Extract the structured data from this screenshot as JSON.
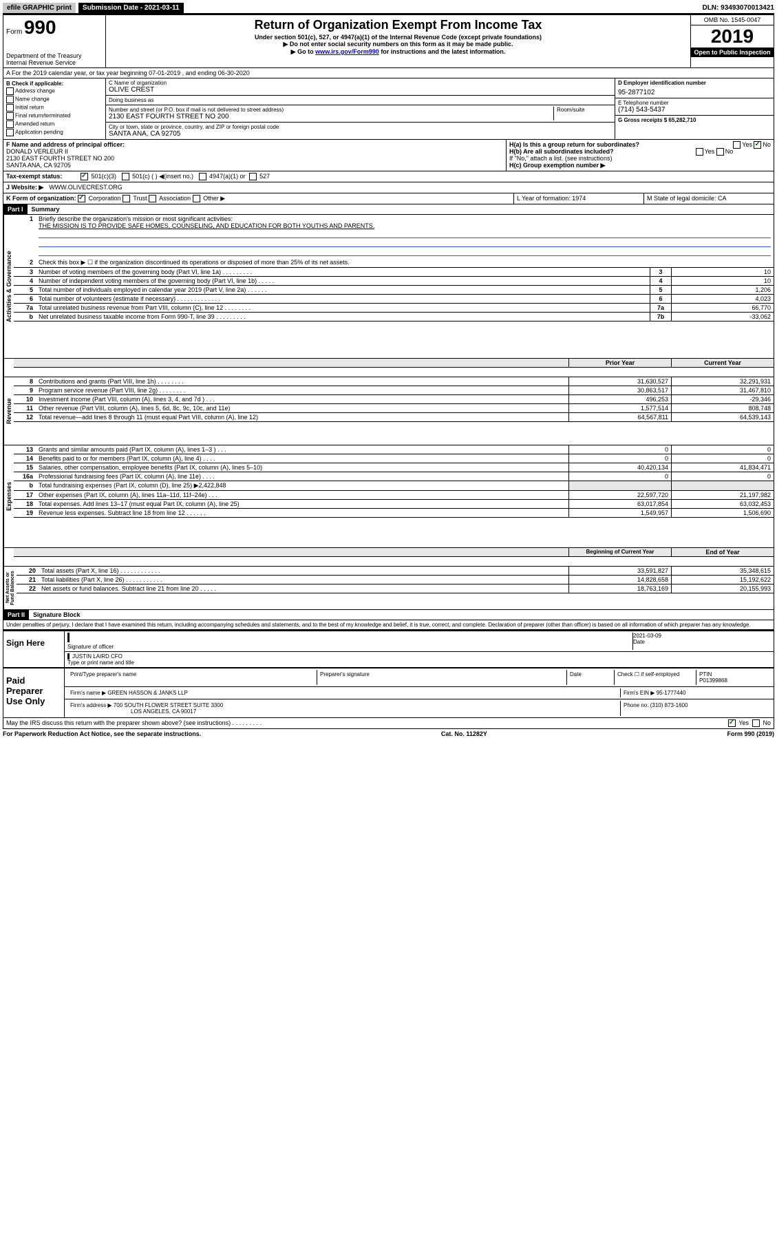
{
  "topbar": {
    "efile": "efile GRAPHIC print",
    "sub_label": "Submission Date - 2021-03-11",
    "dln": "DLN: 93493070013421"
  },
  "header": {
    "form_prefix": "Form",
    "form_number": "990",
    "dept1": "Department of the Treasury",
    "dept2": "Internal Revenue Service",
    "title": "Return of Organization Exempt From Income Tax",
    "subtitle1": "Under section 501(c), 527, or 4947(a)(1) of the Internal Revenue Code (except private foundations)",
    "subtitle2": "▶ Do not enter social security numbers on this form as it may be made public.",
    "subtitle3a": "▶ Go to ",
    "subtitle3_link": "www.irs.gov/Form990",
    "subtitle3b": " for instructions and the latest information.",
    "omb": "OMB No. 1545-0047",
    "year": "2019",
    "open": "Open to Public Inspection"
  },
  "period": {
    "text": "A For the 2019 calendar year, or tax year beginning 07-01-2019   , and ending 06-30-2020"
  },
  "box_b": {
    "header": "B Check if applicable:",
    "items": [
      "Address change",
      "Name change",
      "Initial return",
      "Final return/terminated",
      "Amended return",
      "Application pending"
    ]
  },
  "box_c": {
    "name_label": "C Name of organization",
    "name": "OLIVE CREST",
    "dba_label": "Doing business as",
    "addr_label": "Number and street (or P.O. box if mail is not delivered to street address)",
    "addr": "2130 EAST FOURTH STREET NO 200",
    "room_label": "Room/suite",
    "city_label": "City or town, state or province, country, and ZIP or foreign postal code",
    "city": "SANTA ANA, CA  92705"
  },
  "box_d": {
    "label": "D Employer identification number",
    "value": "95-2877102"
  },
  "box_e": {
    "label": "E Telephone number",
    "value": "(714) 543-5437"
  },
  "box_g": {
    "label": "G Gross receipts $ 65,282,710"
  },
  "box_f": {
    "label": "F Name and address of principal officer:",
    "name": "DONALD VERLEUR II",
    "addr1": "2130 EAST FOURTH STREET NO 200",
    "addr2": "SANTA ANA, CA  92705"
  },
  "box_h": {
    "ha": "H(a)  Is this a group return for subordinates?",
    "hb": "H(b)  Are all subordinates included?",
    "hb_note": "If \"No,\" attach a list. (see instructions)",
    "hc": "H(c)  Group exemption number ▶",
    "yes": "Yes",
    "no": "No"
  },
  "tax_exempt": {
    "label": "Tax-exempt status:",
    "opt1": "501(c)(3)",
    "opt2": "501(c) (   ) ◀(insert no.)",
    "opt3": "4947(a)(1) or",
    "opt4": "527"
  },
  "box_j": {
    "label": "J   Website: ▶",
    "value": "WWW.OLIVECREST.ORG"
  },
  "box_k": {
    "label": "K Form of organization:",
    "corp": "Corporation",
    "trust": "Trust",
    "assoc": "Association",
    "other": "Other ▶"
  },
  "box_l": {
    "label": "L Year of formation: 1974"
  },
  "box_m": {
    "label": "M State of legal domicile: CA"
  },
  "part1": {
    "header": "Part I",
    "title": "Summary",
    "q1_label": "1",
    "q1_text": "Briefly describe the organization's mission or most significant activities:",
    "mission": "THE MISSION IS TO PROVIDE SAFE HOMES, COUNSELING, AND EDUCATION FOR BOTH YOUTHS AND PARENTS.",
    "q2_text": "Check this box ▶ ☐  if the organization discontinued its operations or disposed of more than 25% of its net assets."
  },
  "governance": {
    "label": "Activities & Governance",
    "rows": [
      {
        "n": "2",
        "t": "Check this box ▶ ☐  if the organization discontinued its operations or disposed of more than 25% of its net assets.",
        "sn": "",
        "v": ""
      },
      {
        "n": "3",
        "t": "Number of voting members of the governing body (Part VI, line 1a)  .   .   .   .   .   .   .   .   .",
        "sn": "3",
        "v": "10"
      },
      {
        "n": "4",
        "t": "Number of independent voting members of the governing body (Part VI, line 1b)  .   .   .   .   .",
        "sn": "4",
        "v": "10"
      },
      {
        "n": "5",
        "t": "Total number of individuals employed in calendar year 2019 (Part V, line 2a)  .   .   .   .   .   .",
        "sn": "5",
        "v": "1,206"
      },
      {
        "n": "6",
        "t": "Total number of volunteers (estimate if necessary)  .   .   .   .   .   .   .   .   .   .   .   .   .",
        "sn": "6",
        "v": "4,023"
      },
      {
        "n": "7a",
        "t": "Total unrelated business revenue from Part VIII, column (C), line 12  .   .   .   .   .   .   .   .",
        "sn": "7a",
        "v": "66,770"
      },
      {
        "n": "b",
        "t": "Net unrelated business taxable income from Form 990-T, line 39  .   .   .   .   .   .   .   .   .",
        "sn": "7b",
        "v": "-33,062"
      }
    ]
  },
  "col_headers": {
    "prior": "Prior Year",
    "current": "Current Year",
    "boy": "Beginning of Current Year",
    "eoy": "End of Year"
  },
  "revenue": {
    "label": "Revenue",
    "rows": [
      {
        "n": "8",
        "t": "Contributions and grants (Part VIII, line 1h)   .   .   .   .   .   .   .   .",
        "p": "31,630,527",
        "c": "32,291,931"
      },
      {
        "n": "9",
        "t": "Program service revenue (Part VIII, line 2g)   .   .   .   .   .   .   .   .",
        "p": "30,863,517",
        "c": "31,467,810"
      },
      {
        "n": "10",
        "t": "Investment income (Part VIII, column (A), lines 3, 4, and 7d )   .   .   .",
        "p": "496,253",
        "c": "-29,346"
      },
      {
        "n": "11",
        "t": "Other revenue (Part VIII, column (A), lines 5, 6d, 8c, 9c, 10c, and 11e)",
        "p": "1,577,514",
        "c": "808,748"
      },
      {
        "n": "12",
        "t": "Total revenue—add lines 8 through 11 (must equal Part VIII, column (A), line 12)",
        "p": "64,567,811",
        "c": "64,539,143"
      }
    ]
  },
  "expenses": {
    "label": "Expenses",
    "rows": [
      {
        "n": "13",
        "t": "Grants and similar amounts paid (Part IX, column (A), lines 1–3 )   .   .   .",
        "p": "0",
        "c": "0"
      },
      {
        "n": "14",
        "t": "Benefits paid to or for members (Part IX, column (A), line 4)   .   .   .   .",
        "p": "0",
        "c": "0"
      },
      {
        "n": "15",
        "t": "Salaries, other compensation, employee benefits (Part IX, column (A), lines 5–10)",
        "p": "40,420,134",
        "c": "41,834,471"
      },
      {
        "n": "16a",
        "t": "Professional fundraising fees (Part IX, column (A), line 11e)   .   .   .   .",
        "p": "0",
        "c": "0"
      },
      {
        "n": "b",
        "t": "Total fundraising expenses (Part IX, column (D), line 25) ▶2,422,848",
        "p": "",
        "c": ""
      },
      {
        "n": "17",
        "t": "Other expenses (Part IX, column (A), lines 11a–11d, 11f–24e)   .   .   .",
        "p": "22,597,720",
        "c": "21,197,982"
      },
      {
        "n": "18",
        "t": "Total expenses. Add lines 13–17 (must equal Part IX, column (A), line 25)",
        "p": "63,017,854",
        "c": "63,032,453"
      },
      {
        "n": "19",
        "t": "Revenue less expenses. Subtract line 18 from line 12 .   .   .   .   .   .",
        "p": "1,549,957",
        "c": "1,506,690"
      }
    ]
  },
  "netassets": {
    "label": "Net Assets or Fund Balances",
    "rows": [
      {
        "n": "20",
        "t": "Total assets (Part X, line 16)   .   .   .   .   .   .   .   .   .   .   .   .",
        "p": "33,591,827",
        "c": "35,348,615"
      },
      {
        "n": "21",
        "t": "Total liabilities (Part X, line 26)   .   .   .   .   .   .   .   .   .   .   .",
        "p": "14,828,658",
        "c": "15,192,622"
      },
      {
        "n": "22",
        "t": "Net assets or fund balances. Subtract line 21 from line 20 .   .   .   .   .",
        "p": "18,763,169",
        "c": "20,155,993"
      }
    ]
  },
  "part2": {
    "header": "Part II",
    "title": "Signature Block",
    "declaration": "Under penalties of perjury, I declare that I have examined this return, including accompanying schedules and statements, and to the best of my knowledge and belief, it is true, correct, and complete. Declaration of preparer (other than officer) is based on all information of which preparer has any knowledge."
  },
  "sign": {
    "label": "Sign Here",
    "sig_officer": "Signature of officer",
    "date": "2021-03-09",
    "date_label": "Date",
    "name": "JUSTIN LAIRD  CFO",
    "name_label": "Type or print name and title"
  },
  "preparer": {
    "label": "Paid Preparer Use Only",
    "h_name": "Print/Type preparer's name",
    "h_sig": "Preparer's signature",
    "h_date": "Date",
    "h_check": "Check ☐ if self-employed",
    "h_ptin": "PTIN",
    "ptin": "P01399868",
    "firm_name_label": "Firm's name      ▶",
    "firm_name": "GREEN HASSON & JANKS LLP",
    "firm_ein_label": "Firm's EIN ▶",
    "firm_ein": "95-1777440",
    "firm_addr_label": "Firm's address ▶",
    "firm_addr1": "700 SOUTH FLOWER STREET SUITE 3300",
    "firm_addr2": "LOS ANGELES, CA  90017",
    "phone_label": "Phone no.",
    "phone": "(310) 873-1600"
  },
  "discuss": {
    "text": "May the IRS discuss this return with the preparer shown above? (see instructions)   .   .   .   .   .   .   .   .   .",
    "yes": "Yes",
    "no": "No"
  },
  "footer": {
    "left": "For Paperwork Reduction Act Notice, see the separate instructions.",
    "mid": "Cat. No. 11282Y",
    "right": "Form 990 (2019)"
  }
}
